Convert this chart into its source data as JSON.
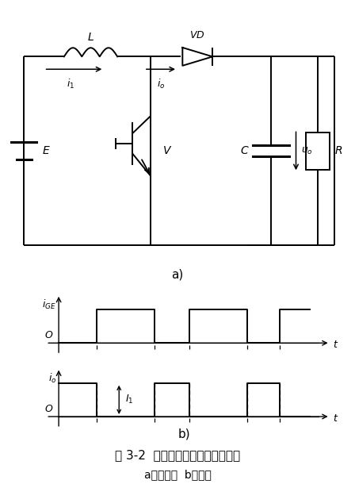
{
  "title": "图 3-2  升压斩波电路及其工作波形",
  "subtitle": "a）电路图  b）波形",
  "fig_width": 4.48,
  "fig_height": 6.1,
  "dpi": 100,
  "bg_color": "#ffffff",
  "line_color": "#000000"
}
